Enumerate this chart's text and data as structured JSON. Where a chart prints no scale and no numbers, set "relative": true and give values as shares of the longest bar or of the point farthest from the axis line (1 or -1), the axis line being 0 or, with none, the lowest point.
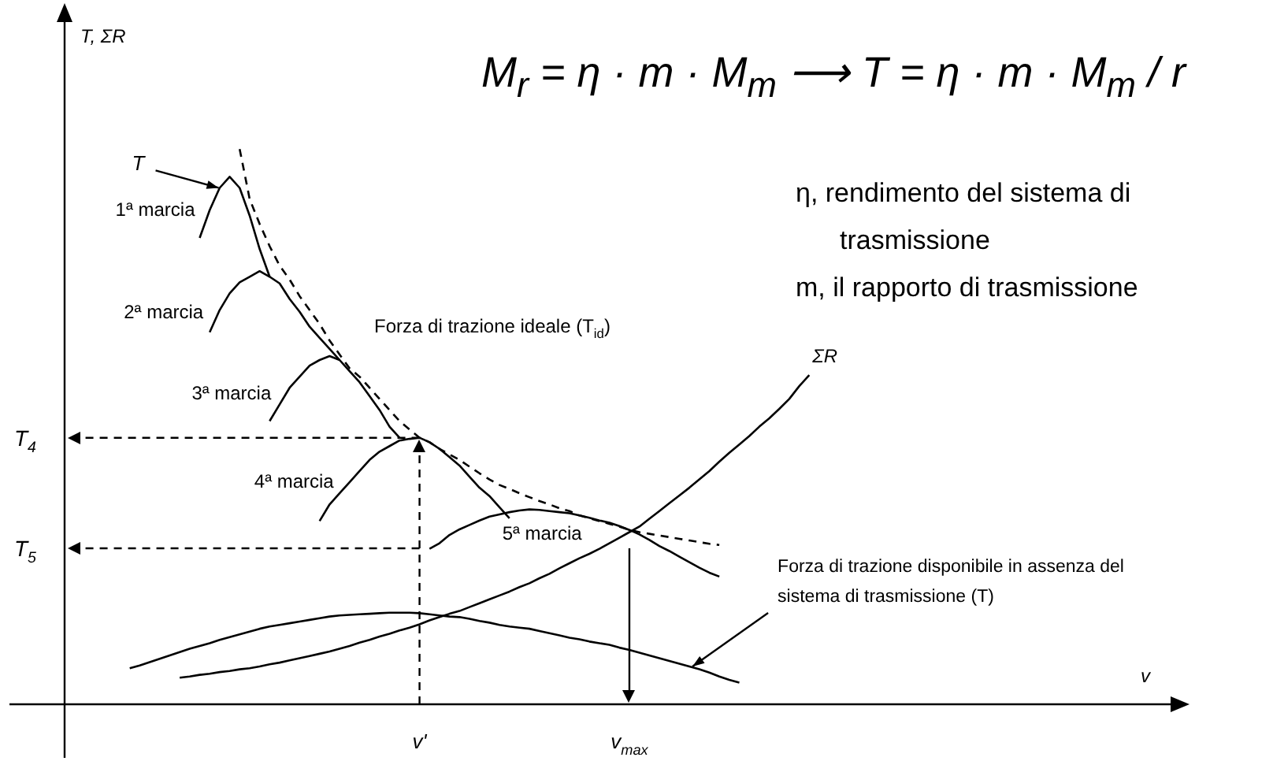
{
  "chart_data": {
    "type": "line",
    "relative": true,
    "title": "M$_{r}$ = η · m · M$_{m}$  ⟶  T = η · m · M$_{m}$ / r",
    "legend": false,
    "marker": "none",
    "categories": [
      null,
      null,
      null,
      null,
      null,
      null,
      null,
      null,
      null,
      null,
      null,
      null,
      null,
      null,
      null,
      null,
      null,
      null,
      null,
      null,
      null,
      null,
      null,
      null,
      null,
      null,
      null,
      null,
      null,
      null,
      "v'",
      null,
      null,
      null,
      null,
      null,
      null,
      null,
      null,
      null,
      null,
      null,
      null,
      null,
      null,
      null,
      null,
      null,
      null,
      null,
      null,
      "v$_{max}$",
      null,
      null,
      null,
      null,
      null,
      null,
      null,
      null,
      null,
      null,
      null,
      null,
      null,
      null,
      null,
      null,
      null,
      null,
      null
    ],
    "annotations": [
      "η, rendimento del sistema di trasmissione",
      "m, il rapporto di trasmissione",
      "T",
      "v",
      "T, ΣR"
    ],
    "ref_lines": [
      {
        "axis": "y",
        "value": 0.48,
        "label": "T$_{4}$",
        "line_style": "dashed"
      },
      {
        "axis": "y",
        "value": 0.281,
        "label": "T$_{5}$",
        "line_style": "dashed"
      },
      {
        "axis": "x",
        "value": "v'",
        "line_style": "dashed"
      },
      {
        "axis": "x",
        "value": "v$_{max}$",
        "line_style": "solid"
      }
    ],
    "series": [
      {
        "name": "1ª marcia",
        "color": "#000000",
        "values": [
          null,
          null,
          null,
          null,
          null,
          null,
          null,
          null,
          0.84,
          0.89,
          0.93,
          0.95,
          0.93,
          0.88,
          0.82,
          0.77,
          null,
          null,
          null,
          null,
          null,
          null,
          null,
          null,
          null,
          null,
          null,
          null,
          null,
          null,
          null,
          null,
          null,
          null,
          null,
          null,
          null,
          null,
          null,
          null,
          null,
          null,
          null,
          null,
          null,
          null,
          null,
          null,
          null,
          null,
          null,
          null,
          null,
          null,
          null,
          null,
          null,
          null,
          null,
          null,
          null,
          null,
          null,
          null,
          null,
          null,
          null,
          null,
          null,
          null,
          null
        ]
      },
      {
        "name": "2ª marcia",
        "color": "#000000",
        "values": [
          null,
          null,
          null,
          null,
          null,
          null,
          null,
          null,
          null,
          0.67,
          0.71,
          0.74,
          0.76,
          0.77,
          0.78,
          0.77,
          0.758,
          0.73,
          0.707,
          0.68,
          0.66,
          0.64,
          0.62,
          null,
          null,
          null,
          null,
          null,
          null,
          null,
          null,
          null,
          null,
          null,
          null,
          null,
          null,
          null,
          null,
          null,
          null,
          null,
          null,
          null,
          null,
          null,
          null,
          null,
          null,
          null,
          null,
          null,
          null,
          null,
          null,
          null,
          null,
          null,
          null,
          null,
          null,
          null,
          null,
          null,
          null,
          null,
          null,
          null,
          null,
          null,
          null
        ]
      },
      {
        "name": "3ª marcia",
        "color": "#000000",
        "values": [
          null,
          null,
          null,
          null,
          null,
          null,
          null,
          null,
          null,
          null,
          null,
          null,
          null,
          null,
          null,
          0.51,
          0.54,
          0.57,
          0.59,
          0.61,
          0.62,
          0.627,
          0.62,
          0.6,
          0.58,
          0.555,
          0.53,
          0.5,
          0.48,
          null,
          null,
          null,
          null,
          null,
          null,
          null,
          null,
          null,
          null,
          null,
          null,
          null,
          null,
          null,
          null,
          null,
          null,
          null,
          null,
          null,
          null,
          null,
          null,
          null,
          null,
          null,
          null,
          null,
          null,
          null,
          null,
          null,
          null,
          null,
          null,
          null,
          null,
          null,
          null,
          null,
          null
        ]
      },
      {
        "name": "4ª marcia",
        "color": "#000000",
        "values": [
          null,
          null,
          null,
          null,
          null,
          null,
          null,
          null,
          null,
          null,
          null,
          null,
          null,
          null,
          null,
          null,
          null,
          null,
          null,
          null,
          0.33,
          0.36,
          0.38,
          0.4,
          0.42,
          0.44,
          0.455,
          0.465,
          0.475,
          0.478,
          0.48,
          0.472,
          0.46,
          0.445,
          0.43,
          0.41,
          0.39,
          0.375,
          0.355,
          0.335,
          null,
          null,
          null,
          null,
          null,
          null,
          null,
          null,
          null,
          null,
          null,
          null,
          null,
          null,
          null,
          null,
          null,
          null,
          null,
          null,
          null,
          null,
          null,
          null,
          null,
          null,
          null,
          null,
          null,
          null,
          null
        ]
      },
      {
        "name": "5ª marcia",
        "color": "#000000",
        "values": [
          null,
          null,
          null,
          null,
          null,
          null,
          null,
          null,
          null,
          null,
          null,
          null,
          null,
          null,
          null,
          null,
          null,
          null,
          null,
          null,
          null,
          null,
          null,
          null,
          null,
          null,
          null,
          null,
          null,
          null,
          null,
          0.28,
          0.29,
          0.305,
          0.315,
          0.323,
          0.331,
          0.338,
          0.342,
          0.346,
          0.349,
          0.351,
          0.35,
          0.348,
          0.346,
          0.344,
          0.34,
          0.336,
          0.331,
          0.327,
          0.321,
          0.314,
          0.306,
          0.296,
          0.285,
          0.276,
          0.266,
          0.256,
          0.246,
          0.237,
          0.23,
          null,
          null,
          null,
          null,
          null,
          null,
          null,
          null,
          null,
          null
        ]
      },
      {
        "name": "Forza di trazione ideale (T$_{id}$)",
        "color": "#000000",
        "line_style": "dashed",
        "values": [
          null,
          null,
          null,
          null,
          null,
          null,
          null,
          null,
          null,
          null,
          null,
          null,
          1.0,
          0.91,
          0.865,
          0.825,
          0.79,
          0.765,
          0.735,
          0.71,
          0.685,
          0.655,
          0.63,
          0.605,
          0.59,
          0.57,
          0.55,
          0.53,
          0.51,
          0.495,
          0.48,
          0.472,
          0.46,
          0.45,
          0.44,
          0.428,
          0.416,
          0.405,
          0.395,
          0.388,
          0.38,
          0.373,
          0.366,
          0.36,
          0.353,
          0.348,
          0.34,
          0.335,
          0.33,
          0.325,
          0.32,
          0.314,
          0.31,
          0.307,
          0.304,
          0.301,
          0.298,
          0.295,
          0.292,
          0.289,
          0.287,
          null,
          null,
          null,
          null,
          null,
          null,
          null,
          null,
          null,
          null
        ]
      },
      {
        "name": "ΣR",
        "color": "#000000",
        "values": [
          null,
          null,
          null,
          null,
          null,
          null,
          0.048,
          0.05,
          0.053,
          0.055,
          0.058,
          0.06,
          0.063,
          0.065,
          0.068,
          0.072,
          0.075,
          0.079,
          0.083,
          0.087,
          0.091,
          0.095,
          0.1,
          0.105,
          0.111,
          0.116,
          0.122,
          0.127,
          0.133,
          0.138,
          0.144,
          0.151,
          0.157,
          0.163,
          0.168,
          0.175,
          0.182,
          0.189,
          0.196,
          0.203,
          0.211,
          0.218,
          0.227,
          0.235,
          0.245,
          0.254,
          0.263,
          0.271,
          0.28,
          0.29,
          0.3,
          0.31,
          0.32,
          0.334,
          0.348,
          0.362,
          0.376,
          0.39,
          0.405,
          0.42,
          0.437,
          0.453,
          0.468,
          0.483,
          0.5,
          0.515,
          0.532,
          0.55,
          0.573,
          0.593,
          null
        ]
      },
      {
        "name": "Forza di trazione disponibile in assenza del sistema di trasmissione (T)",
        "color": "#000000",
        "values": [
          null,
          0.065,
          0.07,
          0.076,
          0.082,
          0.088,
          0.094,
          0.1,
          0.105,
          0.11,
          0.116,
          0.121,
          0.126,
          0.131,
          0.136,
          0.14,
          0.143,
          0.146,
          0.149,
          0.152,
          0.155,
          0.158,
          0.16,
          0.161,
          0.162,
          0.163,
          0.164,
          0.165,
          0.165,
          0.165,
          0.164,
          0.162,
          0.16,
          0.158,
          0.157,
          0.154,
          0.15,
          0.147,
          0.143,
          0.14,
          0.138,
          0.136,
          0.132,
          0.128,
          0.124,
          0.12,
          0.117,
          0.113,
          0.11,
          0.107,
          0.102,
          0.098,
          0.093,
          0.088,
          0.083,
          0.078,
          0.073,
          0.068,
          0.063,
          0.057,
          0.05,
          0.044,
          0.039,
          null,
          null,
          null,
          null,
          null,
          null,
          null,
          null
        ]
      }
    ]
  }
}
